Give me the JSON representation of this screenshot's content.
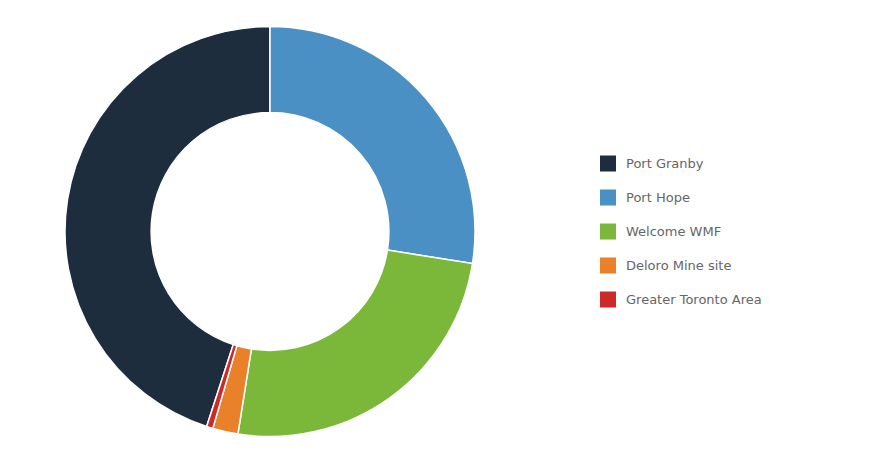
{
  "chart_data": {
    "type": "donut",
    "categories": [
      "Port Granby",
      "Port Hope",
      "Welcome WMF",
      "Deloro Mine site",
      "Greater Toronto Area"
    ],
    "values": [
      45.0,
      27.5,
      25.0,
      2.0,
      0.5
    ],
    "colors": [
      "#1e2d3d",
      "#4a90c4",
      "#7bb83a",
      "#e8812a",
      "#cc2929"
    ],
    "legend": "right"
  }
}
